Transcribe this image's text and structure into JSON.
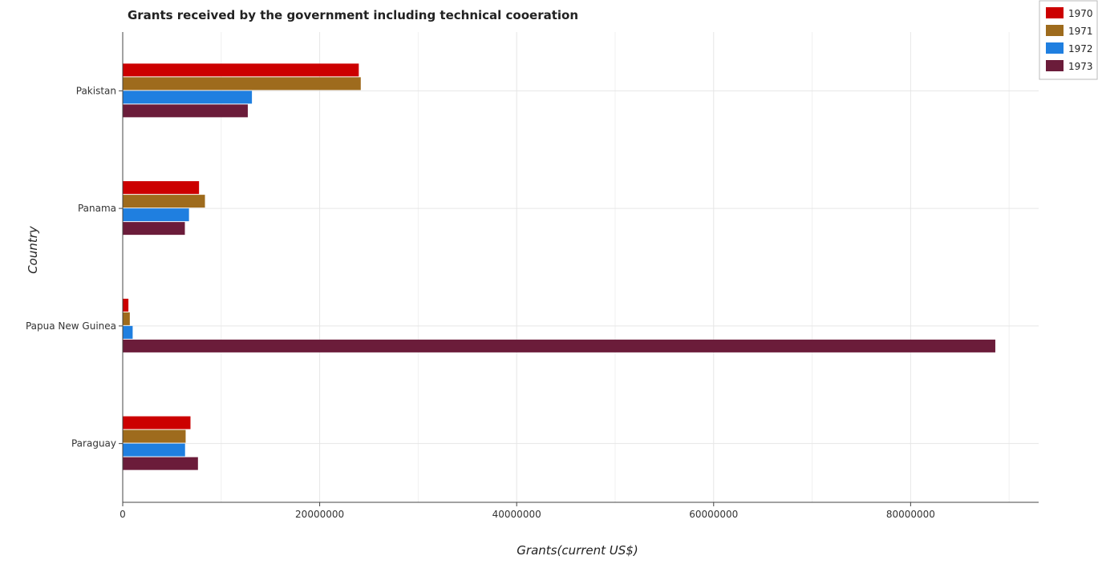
{
  "chart_data": {
    "type": "bar",
    "orientation": "horizontal",
    "title": "Grants received by the government including technical cooeration",
    "xlabel": "Grants(current US$)",
    "ylabel": "Country",
    "categories": [
      "Pakistan",
      "Panama",
      "Papua New Guinea",
      "Paraguay"
    ],
    "series": [
      {
        "name": "1970",
        "color": "#cc0000",
        "values": [
          23970000,
          7750000,
          580000,
          6880000
        ]
      },
      {
        "name": "1971",
        "color": "#9e6b1d",
        "values": [
          24170000,
          8350000,
          720000,
          6390000
        ]
      },
      {
        "name": "1972",
        "color": "#1f7fe0",
        "values": [
          13120000,
          6730000,
          1010000,
          6330000
        ]
      },
      {
        "name": "1973",
        "color": "#6b1c3a",
        "values": [
          12700000,
          6310000,
          88600000,
          7640000
        ]
      }
    ],
    "xlim": [
      0,
      93000000
    ],
    "xticks": [
      0,
      20000000,
      40000000,
      60000000,
      80000000
    ],
    "xtick_labels": [
      "0",
      "2000000​0",
      "4000000​0",
      "6000000​0",
      "8000000​0"
    ],
    "grid": true,
    "legend_position": "top-right"
  }
}
